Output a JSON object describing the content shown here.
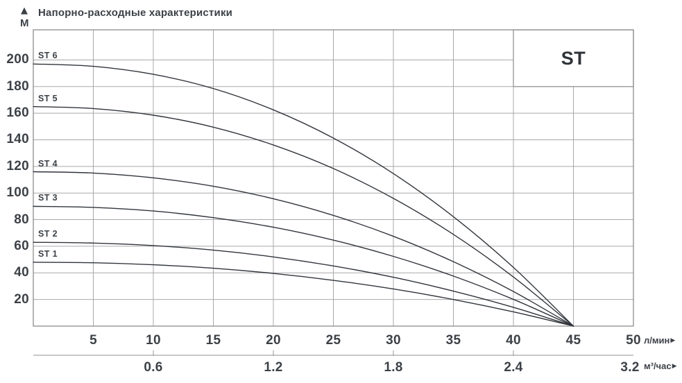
{
  "header": {
    "title": "Напорно-расходные характеристики",
    "y_axis_unit": "М"
  },
  "icons": {
    "axis_up_arrow": "▲",
    "axis_right_arrow": "▶"
  },
  "colors": {
    "text": "#3c4147",
    "grid": "#a8a8a8",
    "frame": "#8d8d8d",
    "curve": "#30343a",
    "background": "#ffffff",
    "badge_background": "#ffffff"
  },
  "chart_data": {
    "type": "line",
    "title": "Напорно-расходные характеристики",
    "family_label": "ST",
    "grid": true,
    "legend_position": "labels-at-curve-start",
    "x": [
      0,
      5,
      10,
      15,
      20,
      25,
      30,
      35,
      40,
      45
    ],
    "x_axis": {
      "label": "л/мин",
      "range": [
        0,
        50
      ],
      "ticks": [
        5,
        10,
        15,
        20,
        25,
        30,
        35,
        40,
        45,
        50
      ]
    },
    "x_axis_secondary": {
      "label": "м³/час",
      "ticks": [
        "0.6",
        "1.2",
        "1.8",
        "2.4",
        "3.2"
      ],
      "tick_positions_lmin": [
        10,
        20,
        30,
        40,
        50
      ]
    },
    "y_axis": {
      "label": "М",
      "range": [
        0,
        222
      ],
      "ticks": [
        20,
        40,
        60,
        80,
        100,
        120,
        140,
        160,
        180,
        200
      ]
    },
    "series": [
      {
        "name": "ST 1",
        "head_at_zero_flow": 48,
        "values": [
          48,
          47.6,
          46.1,
          43.5,
          39.6,
          34.4,
          27.9,
          20.0,
          10.7,
          0
        ]
      },
      {
        "name": "ST 2",
        "head_at_zero_flow": 63,
        "values": [
          63,
          62.4,
          60.5,
          57.1,
          52.0,
          45.2,
          36.7,
          26.3,
          14.1,
          0
        ]
      },
      {
        "name": "ST 3",
        "head_at_zero_flow": 90,
        "values": [
          90,
          89.2,
          86.5,
          81.5,
          74.3,
          64.6,
          52.4,
          37.6,
          20.1,
          0
        ]
      },
      {
        "name": "ST 4",
        "head_at_zero_flow": 116,
        "values": [
          116,
          115.0,
          111.4,
          105.1,
          95.7,
          83.2,
          67.5,
          48.4,
          26.0,
          0
        ]
      },
      {
        "name": "ST 5",
        "head_at_zero_flow": 165,
        "values": [
          165,
          163.5,
          158.5,
          149.5,
          136.1,
          118.4,
          96.0,
          68.9,
          36.9,
          0
        ]
      },
      {
        "name": "ST 6",
        "head_at_zero_flow": 197,
        "values": [
          197,
          195.2,
          189.2,
          178.5,
          162.5,
          141.3,
          114.6,
          82.2,
          44.1,
          0
        ]
      }
    ]
  }
}
